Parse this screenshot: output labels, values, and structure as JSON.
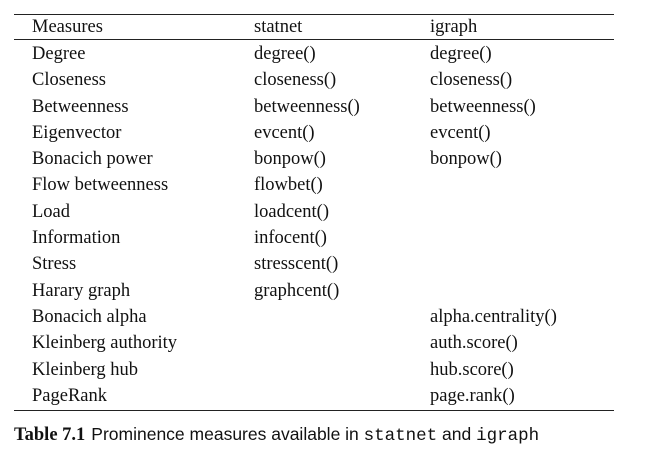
{
  "table": {
    "headers": [
      "Measures",
      "statnet",
      "igraph"
    ],
    "rows": [
      [
        "Degree",
        "degree()",
        "degree()"
      ],
      [
        "Closeness",
        "closeness()",
        "closeness()"
      ],
      [
        "Betweenness",
        "betweenness()",
        "betweenness()"
      ],
      [
        "Eigenvector",
        "evcent()",
        "evcent()"
      ],
      [
        "Bonacich power",
        "bonpow()",
        "bonpow()"
      ],
      [
        "Flow betweenness",
        "flowbet()",
        ""
      ],
      [
        "Load",
        "loadcent()",
        ""
      ],
      [
        "Information",
        "infocent()",
        ""
      ],
      [
        "Stress",
        "stresscent()",
        ""
      ],
      [
        "Harary graph",
        "graphcent()",
        ""
      ],
      [
        "Bonacich alpha",
        "",
        "alpha.centrality()"
      ],
      [
        "Kleinberg authority",
        "",
        "auth.score()"
      ],
      [
        "Kleinberg hub",
        "",
        "hub.score()"
      ],
      [
        "PageRank",
        "",
        "page.rank()"
      ]
    ]
  },
  "caption": {
    "label": "Table 7.1",
    "text_before": "Prominence measures available in",
    "package1": "statnet",
    "conjunction": "and",
    "package2": "igraph"
  }
}
